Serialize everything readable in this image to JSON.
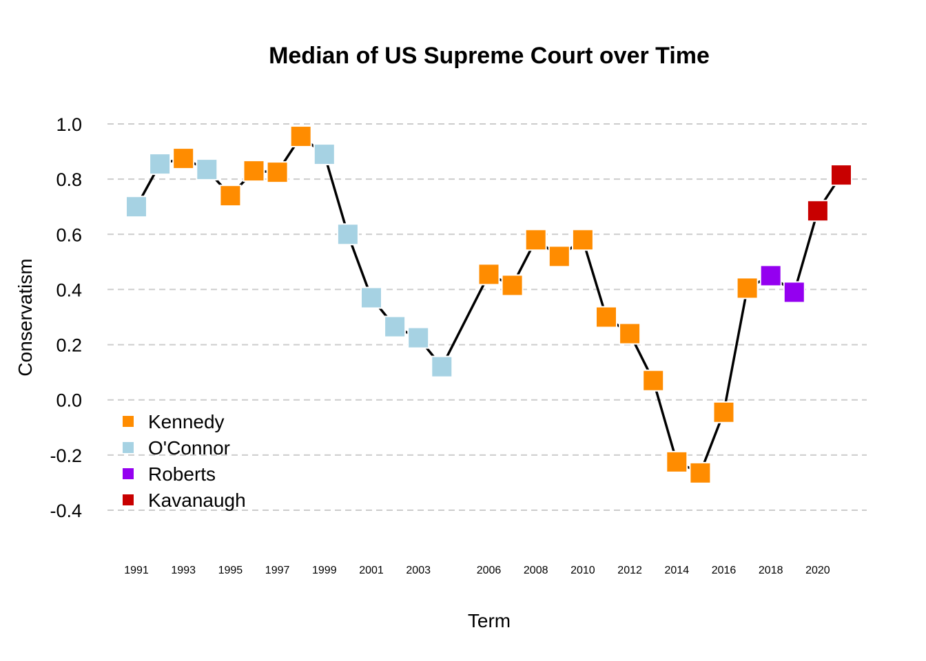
{
  "chart_data": {
    "type": "line",
    "title": "Median of US Supreme Court over Time",
    "xlabel": "Term",
    "ylabel": "Conservatism",
    "ylim": [
      -0.4,
      1.0
    ],
    "yticks": [
      "1.0",
      "0.8",
      "0.6",
      "0.4",
      "0.2",
      "0.0",
      "-0.2",
      "-0.4"
    ],
    "ytick_values": [
      1.0,
      0.8,
      0.6,
      0.4,
      0.2,
      0.0,
      -0.2,
      -0.4
    ],
    "xticks": [
      "1991",
      "1993",
      "1995",
      "1997",
      "1999",
      "2001",
      "2003",
      "2006",
      "2008",
      "2010",
      "2012",
      "2014",
      "2016",
      "2018",
      "2020"
    ],
    "xtick_values": [
      1991,
      1993,
      1995,
      1997,
      1999,
      2001,
      2003,
      2006,
      2008,
      2010,
      2012,
      2014,
      2016,
      2018,
      2020
    ],
    "grid": "horizontal dashed",
    "legend_position": "bottom-left",
    "series": [
      {
        "name": "Kennedy",
        "color": "#FF8C00"
      },
      {
        "name": "O'Connor",
        "color": "#A6D2E3"
      },
      {
        "name": "Roberts",
        "color": "#9400F0"
      },
      {
        "name": "Kavanaugh",
        "color": "#C80000"
      }
    ],
    "points": [
      {
        "x": 1991,
        "y": 0.7,
        "median": "O'Connor"
      },
      {
        "x": 1992,
        "y": 0.855,
        "median": "O'Connor"
      },
      {
        "x": 1993,
        "y": 0.875,
        "median": "Kennedy"
      },
      {
        "x": 1994,
        "y": 0.835,
        "median": "O'Connor"
      },
      {
        "x": 1995,
        "y": 0.74,
        "median": "Kennedy"
      },
      {
        "x": 1996,
        "y": 0.83,
        "median": "Kennedy"
      },
      {
        "x": 1997,
        "y": 0.825,
        "median": "Kennedy"
      },
      {
        "x": 1998,
        "y": 0.955,
        "median": "Kennedy"
      },
      {
        "x": 1999,
        "y": 0.89,
        "median": "O'Connor"
      },
      {
        "x": 2000,
        "y": 0.6,
        "median": "O'Connor"
      },
      {
        "x": 2001,
        "y": 0.37,
        "median": "O'Connor"
      },
      {
        "x": 2002,
        "y": 0.265,
        "median": "O'Connor"
      },
      {
        "x": 2003,
        "y": 0.225,
        "median": "O'Connor"
      },
      {
        "x": 2004,
        "y": 0.12,
        "median": "O'Connor"
      },
      {
        "x": 2006,
        "y": 0.455,
        "median": "Kennedy"
      },
      {
        "x": 2007,
        "y": 0.415,
        "median": "Kennedy"
      },
      {
        "x": 2008,
        "y": 0.58,
        "median": "Kennedy"
      },
      {
        "x": 2009,
        "y": 0.52,
        "median": "Kennedy"
      },
      {
        "x": 2010,
        "y": 0.58,
        "median": "Kennedy"
      },
      {
        "x": 2011,
        "y": 0.3,
        "median": "Kennedy"
      },
      {
        "x": 2012,
        "y": 0.24,
        "median": "Kennedy"
      },
      {
        "x": 2013,
        "y": 0.07,
        "median": "Kennedy"
      },
      {
        "x": 2014,
        "y": -0.225,
        "median": "Kennedy"
      },
      {
        "x": 2015,
        "y": -0.265,
        "median": "Kennedy"
      },
      {
        "x": 2016,
        "y": -0.045,
        "median": "Kennedy"
      },
      {
        "x": 2017,
        "y": 0.405,
        "median": "Kennedy"
      },
      {
        "x": 2018,
        "y": 0.45,
        "median": "Roberts"
      },
      {
        "x": 2019,
        "y": 0.39,
        "median": "Roberts"
      },
      {
        "x": 2020,
        "y": 0.685,
        "median": "Kavanaugh"
      },
      {
        "x": 2021,
        "y": 0.815,
        "median": "Kavanaugh"
      }
    ]
  }
}
